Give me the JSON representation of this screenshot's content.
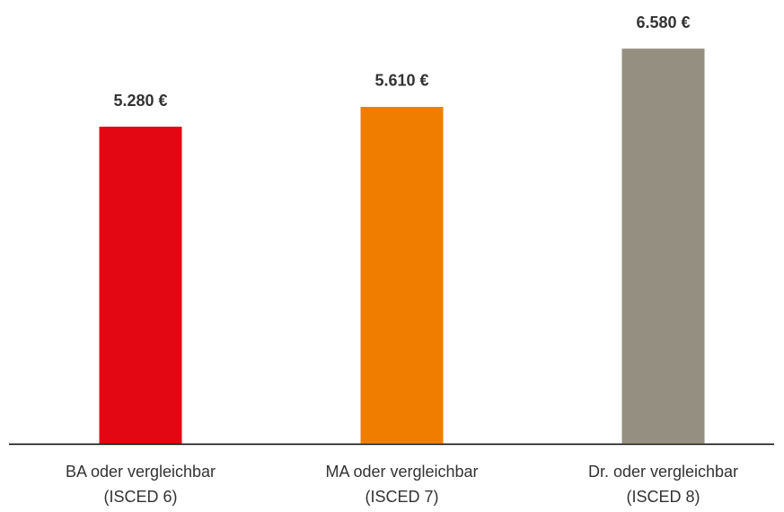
{
  "chart_data": {
    "type": "bar",
    "categories": [
      "BA oder vergleichbar\n(ISCED 6)",
      "MA oder vergleichbar\n(ISCED 7)",
      "Dr. oder vergleichbar\n(ISCED 8)"
    ],
    "values": [
      5280,
      5610,
      6580
    ],
    "value_labels": [
      "5.280 €",
      "5.610 €",
      "6.580 €"
    ],
    "colors": [
      "#e30613",
      "#f07d00",
      "#948f80"
    ],
    "ylim": [
      0,
      7390
    ]
  }
}
